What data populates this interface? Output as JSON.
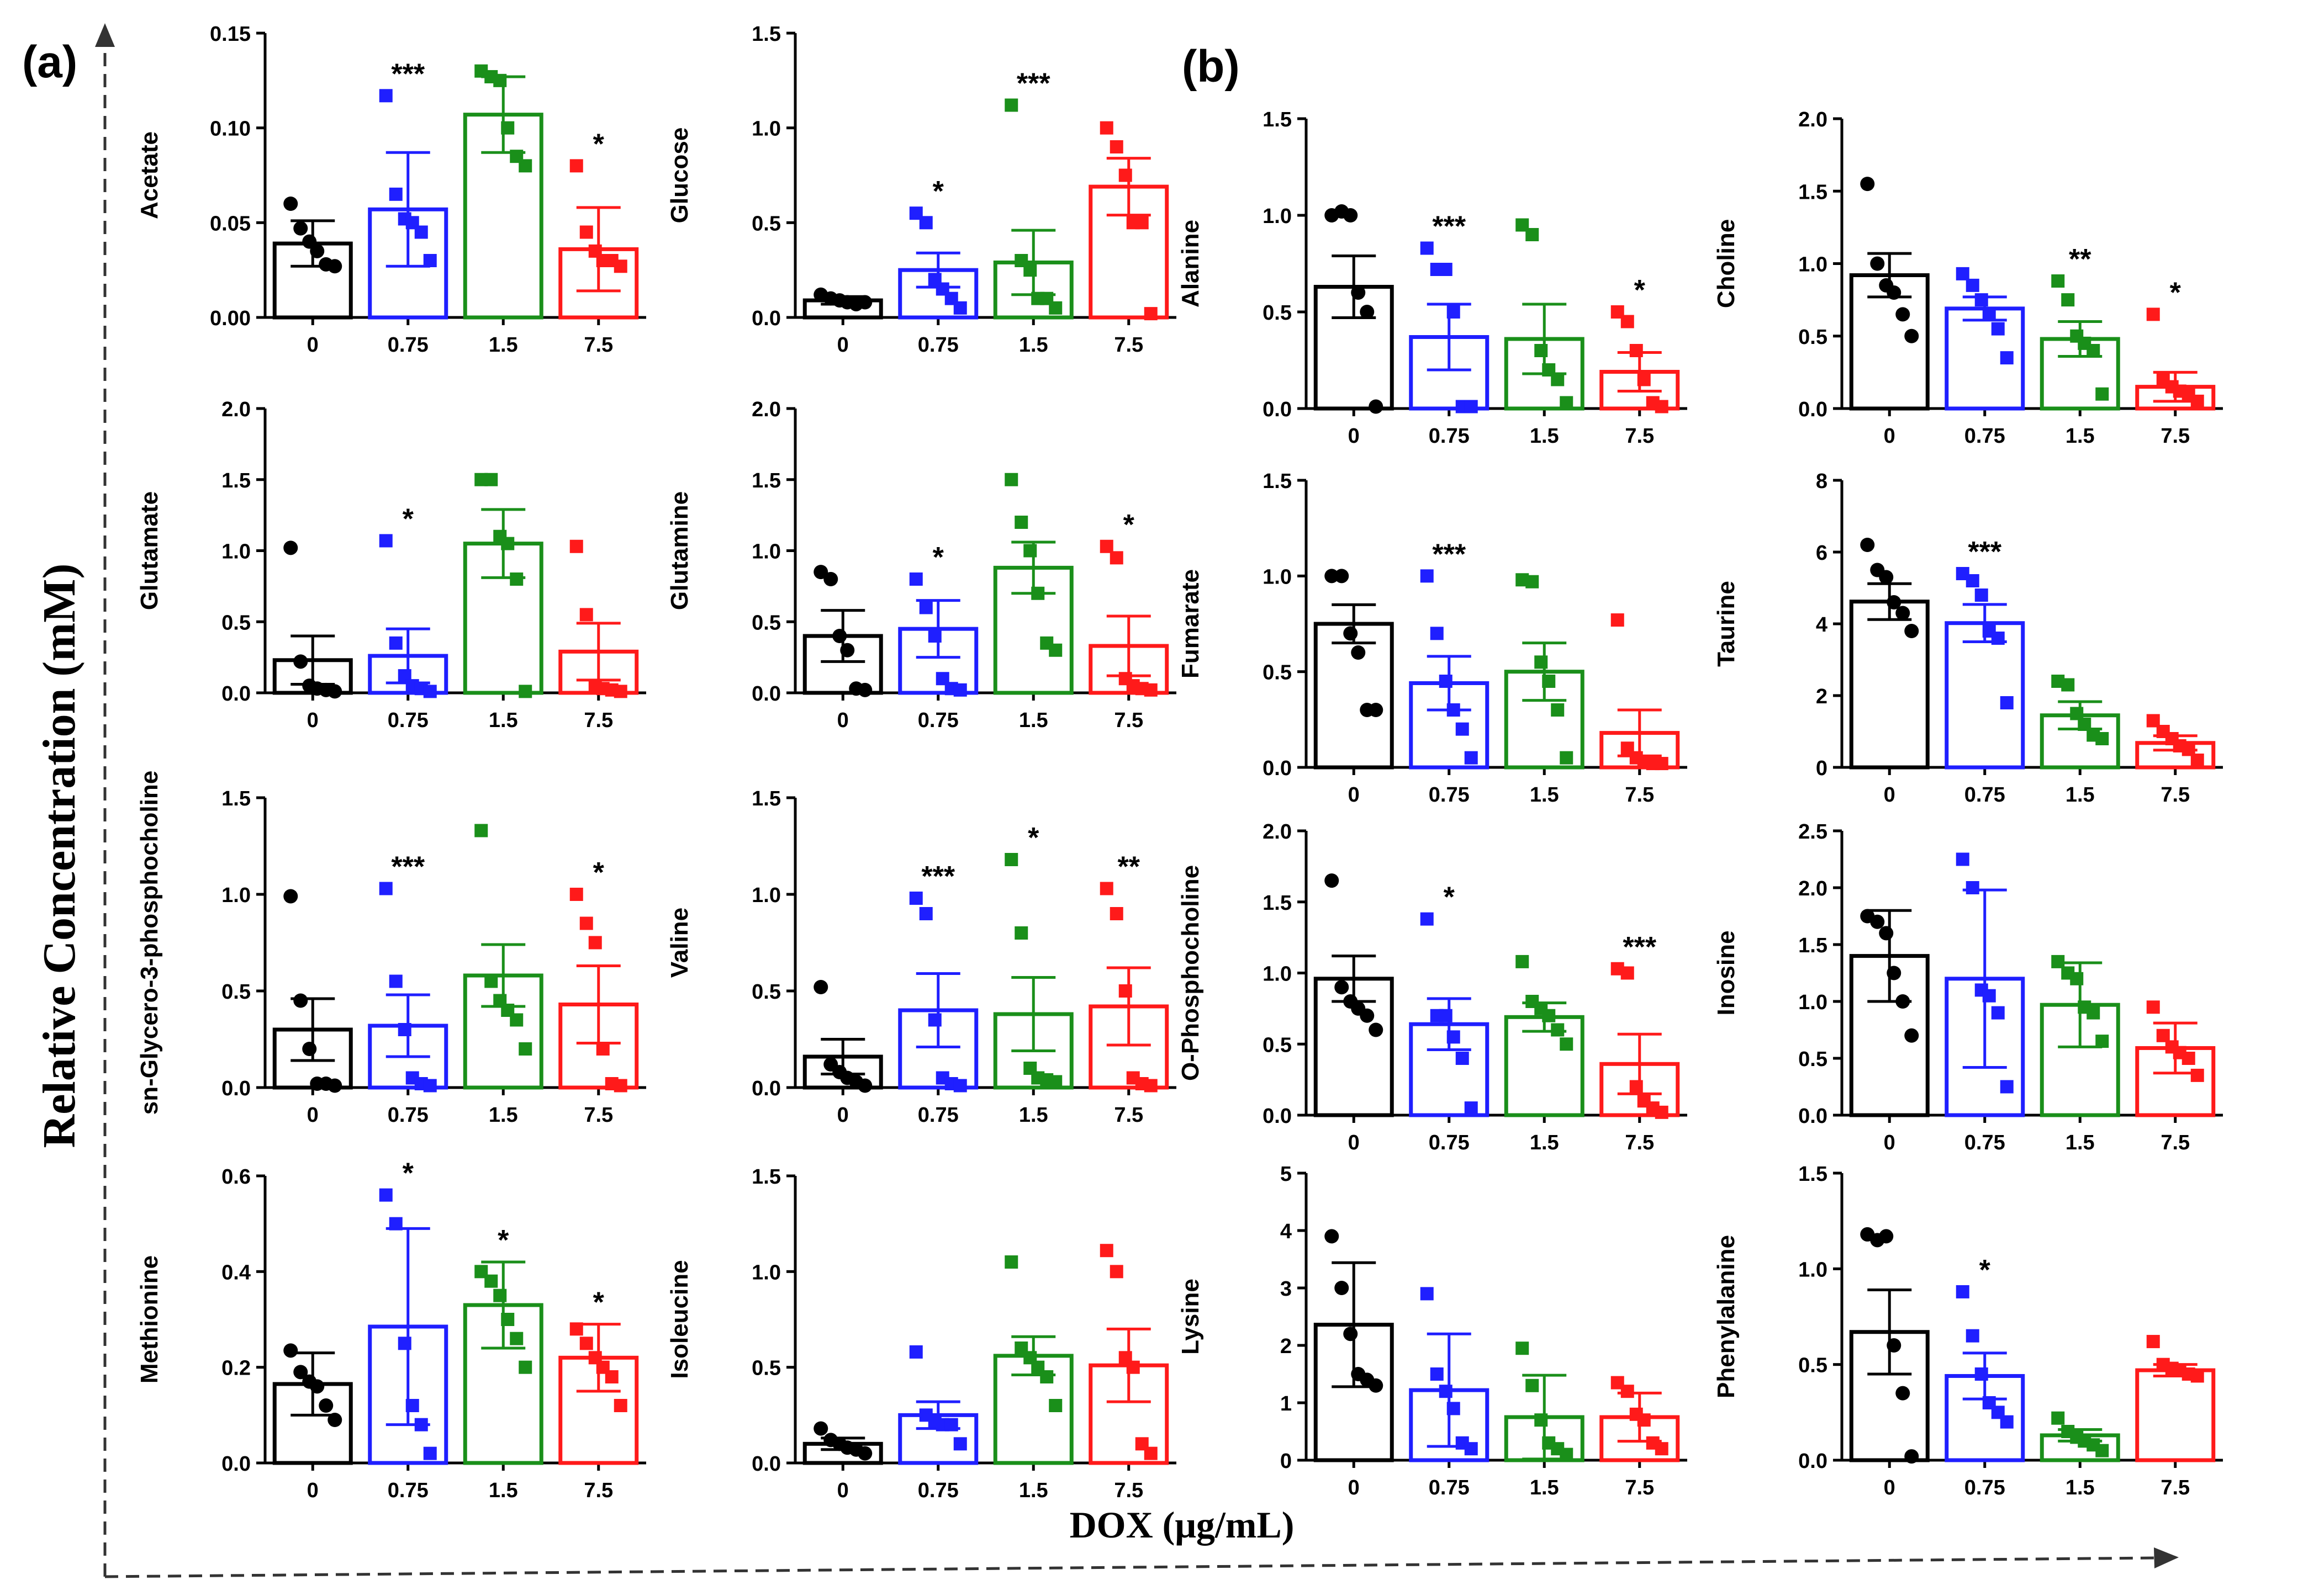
{
  "figure": {
    "panel_a_label": "(a)",
    "panel_b_label": "(b)",
    "y_axis_title": "Relative Concentration (mM)",
    "x_axis_title": "DOX (μg/mL)"
  },
  "colors": [
    "#000000",
    "#1f1fff",
    "#1a8f1a",
    "#ff1a1a"
  ],
  "chart_data": [
    {
      "type": "bar",
      "panel": "a",
      "ylabel": "Acetate",
      "categories": [
        "0",
        "0.75",
        "1.5",
        "7.5"
      ],
      "ylim": [
        0,
        0.15
      ],
      "yticks": [
        "0.00",
        "0.05",
        "0.10",
        "0.15"
      ],
      "ytick_values": [
        0,
        0.05,
        0.1,
        0.15
      ],
      "means": [
        0.039,
        0.057,
        0.107,
        0.036
      ],
      "errors": [
        0.012,
        0.03,
        0.02,
        0.022
      ],
      "sig": [
        "",
        "***",
        "",
        "*"
      ],
      "points": [
        [
          0.06,
          0.047,
          0.04,
          0.035,
          0.028,
          0.027
        ],
        [
          0.117,
          0.065,
          0.052,
          0.05,
          0.045,
          0.03
        ],
        [
          0.13,
          0.127,
          0.125,
          0.1,
          0.085,
          0.08
        ],
        [
          0.08,
          0.045,
          0.035,
          0.03,
          0.03,
          0.027
        ]
      ]
    },
    {
      "type": "bar",
      "panel": "a",
      "ylabel": "Glucose",
      "categories": [
        "0",
        "0.75",
        "1.5",
        "7.5"
      ],
      "ylim": [
        0,
        1.5
      ],
      "yticks": [
        "0.0",
        "0.5",
        "1.0",
        "1.5"
      ],
      "ytick_values": [
        0,
        0.5,
        1.0,
        1.5
      ],
      "means": [
        0.09,
        0.25,
        0.29,
        0.69
      ],
      "errors": [
        0.02,
        0.09,
        0.17,
        0.15
      ],
      "sig": [
        "",
        "*",
        "***",
        ""
      ],
      "points": [
        [
          0.12,
          0.1,
          0.09,
          0.08,
          0.07,
          0.08
        ],
        [
          0.55,
          0.5,
          0.2,
          0.15,
          0.1,
          0.05
        ],
        [
          1.12,
          0.3,
          0.25,
          0.1,
          0.1,
          0.05
        ],
        [
          1.0,
          0.9,
          0.75,
          0.5,
          0.5,
          0.02
        ]
      ]
    },
    {
      "type": "bar",
      "panel": "a",
      "ylabel": "Glutamate",
      "categories": [
        "0",
        "0.75",
        "1.5",
        "7.5"
      ],
      "ylim": [
        0,
        2.0
      ],
      "yticks": [
        "0.0",
        "0.5",
        "1.0",
        "1.5",
        "2.0"
      ],
      "ytick_values": [
        0,
        0.5,
        1.0,
        1.5,
        2.0
      ],
      "means": [
        0.23,
        0.26,
        1.05,
        0.29
      ],
      "errors": [
        0.17,
        0.19,
        0.24,
        0.2
      ],
      "sig": [
        "",
        "*",
        "",
        ""
      ],
      "points": [
        [
          1.02,
          0.22,
          0.05,
          0.03,
          0.02,
          0.01
        ],
        [
          1.07,
          0.35,
          0.12,
          0.05,
          0.03,
          0.01
        ],
        [
          1.5,
          1.5,
          1.1,
          1.05,
          0.8,
          0.01
        ],
        [
          1.03,
          0.55,
          0.05,
          0.03,
          0.02,
          0.01
        ]
      ]
    },
    {
      "type": "bar",
      "panel": "a",
      "ylabel": "Glutamine",
      "categories": [
        "0",
        "0.75",
        "1.5",
        "7.5"
      ],
      "ylim": [
        0,
        2.0
      ],
      "yticks": [
        "0.0",
        "0.5",
        "1.0",
        "1.5",
        "2.0"
      ],
      "ytick_values": [
        0,
        0.5,
        1.0,
        1.5,
        2.0
      ],
      "means": [
        0.4,
        0.45,
        0.88,
        0.33
      ],
      "errors": [
        0.18,
        0.2,
        0.18,
        0.21
      ],
      "sig": [
        "",
        "*",
        "",
        "*"
      ],
      "points": [
        [
          0.85,
          0.8,
          0.4,
          0.3,
          0.03,
          0.02
        ],
        [
          0.8,
          0.6,
          0.4,
          0.1,
          0.03,
          0.02
        ],
        [
          1.5,
          1.2,
          1.0,
          0.7,
          0.35,
          0.3
        ],
        [
          1.03,
          0.95,
          0.1,
          0.05,
          0.03,
          0.02
        ]
      ]
    },
    {
      "type": "bar",
      "panel": "a",
      "ylabel": "sn-Glycero-3-phosphocholine",
      "categories": [
        "0",
        "0.75",
        "1.5",
        "7.5"
      ],
      "ylim": [
        0,
        1.5
      ],
      "yticks": [
        "0.0",
        "0.5",
        "1.0",
        "1.5"
      ],
      "ytick_values": [
        0,
        0.5,
        1.0,
        1.5
      ],
      "means": [
        0.3,
        0.32,
        0.58,
        0.43
      ],
      "errors": [
        0.16,
        0.16,
        0.16,
        0.2
      ],
      "sig": [
        "",
        "***",
        "",
        "*"
      ],
      "points": [
        [
          0.99,
          0.45,
          0.2,
          0.02,
          0.02,
          0.01
        ],
        [
          1.03,
          0.55,
          0.3,
          0.05,
          0.02,
          0.01
        ],
        [
          1.33,
          0.55,
          0.45,
          0.4,
          0.35,
          0.2
        ],
        [
          1.0,
          0.85,
          0.75,
          0.2,
          0.02,
          0.01
        ]
      ]
    },
    {
      "type": "bar",
      "panel": "a",
      "ylabel": "Valine",
      "categories": [
        "0",
        "0.75",
        "1.5",
        "7.5"
      ],
      "ylim": [
        0,
        1.5
      ],
      "yticks": [
        "0.0",
        "0.5",
        "1.0",
        "1.5"
      ],
      "ytick_values": [
        0,
        0.5,
        1.0,
        1.5
      ],
      "means": [
        0.16,
        0.4,
        0.38,
        0.42
      ],
      "errors": [
        0.09,
        0.19,
        0.19,
        0.2
      ],
      "sig": [
        "",
        "***",
        "*",
        "**"
      ],
      "points": [
        [
          0.52,
          0.12,
          0.08,
          0.05,
          0.03,
          0.01
        ],
        [
          0.98,
          0.9,
          0.35,
          0.05,
          0.02,
          0.01
        ],
        [
          1.18,
          0.8,
          0.1,
          0.05,
          0.04,
          0.03
        ],
        [
          1.03,
          0.9,
          0.5,
          0.05,
          0.02,
          0.01
        ]
      ]
    },
    {
      "type": "bar",
      "panel": "a",
      "ylabel": "Methionine",
      "categories": [
        "0",
        "0.75",
        "1.5",
        "7.5"
      ],
      "ylim": [
        0,
        0.6
      ],
      "yticks": [
        "0.0",
        "0.2",
        "0.4",
        "0.6"
      ],
      "ytick_values": [
        0,
        0.2,
        0.4,
        0.6
      ],
      "means": [
        0.165,
        0.285,
        0.33,
        0.22
      ],
      "errors": [
        0.065,
        0.205,
        0.09,
        0.07
      ],
      "sig": [
        "",
        "*",
        "*",
        "*"
      ],
      "points": [
        [
          0.235,
          0.19,
          0.17,
          0.16,
          0.12,
          0.09
        ],
        [
          0.56,
          0.5,
          0.25,
          0.12,
          0.08,
          0.02
        ],
        [
          0.4,
          0.38,
          0.35,
          0.3,
          0.26,
          0.2
        ],
        [
          0.28,
          0.25,
          0.22,
          0.2,
          0.18,
          0.12
        ]
      ]
    },
    {
      "type": "bar",
      "panel": "a",
      "ylabel": "Isoleucine",
      "categories": [
        "0",
        "0.75",
        "1.5",
        "7.5"
      ],
      "ylim": [
        0,
        1.5
      ],
      "yticks": [
        "0.0",
        "0.5",
        "1.0",
        "1.5"
      ],
      "ytick_values": [
        0,
        0.5,
        1.0,
        1.5
      ],
      "means": [
        0.1,
        0.25,
        0.56,
        0.51
      ],
      "errors": [
        0.03,
        0.07,
        0.1,
        0.19
      ],
      "sig": [
        "",
        "",
        "",
        ""
      ],
      "points": [
        [
          0.18,
          0.12,
          0.1,
          0.08,
          0.07,
          0.05
        ],
        [
          0.58,
          0.25,
          0.22,
          0.2,
          0.2,
          0.1
        ],
        [
          1.05,
          0.6,
          0.55,
          0.5,
          0.45,
          0.3
        ],
        [
          1.11,
          1.0,
          0.55,
          0.5,
          0.1,
          0.05
        ]
      ]
    },
    {
      "type": "bar",
      "panel": "b",
      "ylabel": "Alanine",
      "categories": [
        "0",
        "0.75",
        "1.5",
        "7.5"
      ],
      "ylim": [
        0,
        1.5
      ],
      "yticks": [
        "0.0",
        "0.5",
        "1.0",
        "1.5"
      ],
      "ytick_values": [
        0,
        0.5,
        1.0,
        1.5
      ],
      "means": [
        0.63,
        0.37,
        0.36,
        0.19
      ],
      "errors": [
        0.16,
        0.17,
        0.18,
        0.1
      ],
      "sig": [
        "",
        "***",
        "",
        "*"
      ],
      "points": [
        [
          1.0,
          1.02,
          1.0,
          0.6,
          0.5,
          0.01
        ],
        [
          0.83,
          0.72,
          0.72,
          0.5,
          0.01,
          0.01
        ],
        [
          0.95,
          0.9,
          0.3,
          0.2,
          0.15,
          0.03
        ],
        [
          0.5,
          0.45,
          0.3,
          0.15,
          0.03,
          0.01
        ]
      ]
    },
    {
      "type": "bar",
      "panel": "b",
      "ylabel": "Choline",
      "categories": [
        "0",
        "0.75",
        "1.5",
        "7.5"
      ],
      "ylim": [
        0,
        2.0
      ],
      "yticks": [
        "0.0",
        "0.5",
        "1.0",
        "1.5",
        "2.0"
      ],
      "ytick_values": [
        0,
        0.5,
        1.0,
        1.5,
        2.0
      ],
      "means": [
        0.92,
        0.69,
        0.48,
        0.15
      ],
      "errors": [
        0.15,
        0.08,
        0.12,
        0.1
      ],
      "sig": [
        "",
        "",
        "**",
        "*"
      ],
      "points": [
        [
          1.55,
          1.0,
          0.85,
          0.8,
          0.65,
          0.5
        ],
        [
          0.93,
          0.85,
          0.75,
          0.65,
          0.55,
          0.35
        ],
        [
          0.88,
          0.75,
          0.5,
          0.45,
          0.4,
          0.1
        ],
        [
          0.65,
          0.2,
          0.15,
          0.12,
          0.1,
          0.05
        ]
      ]
    },
    {
      "type": "bar",
      "panel": "b",
      "ylabel": "Fumarate",
      "categories": [
        "0",
        "0.75",
        "1.5",
        "7.5"
      ],
      "ylim": [
        0,
        1.5
      ],
      "yticks": [
        "0.0",
        "0.5",
        "1.0",
        "1.5"
      ],
      "ytick_values": [
        0,
        0.5,
        1.0,
        1.5
      ],
      "means": [
        0.75,
        0.44,
        0.5,
        0.18
      ],
      "errors": [
        0.1,
        0.14,
        0.15,
        0.12
      ],
      "sig": [
        "",
        "***",
        "",
        ""
      ],
      "points": [
        [
          1.0,
          1.0,
          0.7,
          0.6,
          0.3,
          0.3
        ],
        [
          1.0,
          0.7,
          0.45,
          0.3,
          0.2,
          0.05
        ],
        [
          0.98,
          0.97,
          0.55,
          0.45,
          0.3,
          0.05
        ],
        [
          0.77,
          0.1,
          0.05,
          0.03,
          0.02,
          0.02
        ]
      ]
    },
    {
      "type": "bar",
      "panel": "b",
      "ylabel": "Taurine",
      "categories": [
        "0",
        "0.75",
        "1.5",
        "7.5"
      ],
      "ylim": [
        0,
        8
      ],
      "yticks": [
        "0",
        "2",
        "4",
        "6",
        "8"
      ],
      "ytick_values": [
        0,
        2,
        4,
        6,
        8
      ],
      "means": [
        4.62,
        4.02,
        1.45,
        0.68
      ],
      "errors": [
        0.5,
        0.52,
        0.38,
        0.2
      ],
      "sig": [
        "",
        "***",
        "",
        ""
      ],
      "points": [
        [
          6.2,
          5.5,
          5.3,
          4.6,
          4.3,
          3.8
        ],
        [
          5.4,
          5.2,
          4.8,
          3.8,
          3.6,
          1.8
        ],
        [
          2.4,
          2.3,
          1.5,
          1.2,
          0.9,
          0.8
        ],
        [
          1.3,
          1.0,
          0.8,
          0.6,
          0.5,
          0.2
        ]
      ]
    },
    {
      "type": "bar",
      "panel": "b",
      "ylabel": "O-Phosphocholine",
      "categories": [
        "0",
        "0.75",
        "1.5",
        "7.5"
      ],
      "ylim": [
        0,
        2.0
      ],
      "yticks": [
        "0.0",
        "0.5",
        "1.0",
        "1.5",
        "2.0"
      ],
      "ytick_values": [
        0,
        0.5,
        1.0,
        1.5,
        2.0
      ],
      "means": [
        0.96,
        0.64,
        0.69,
        0.36
      ],
      "errors": [
        0.16,
        0.18,
        0.1,
        0.21
      ],
      "sig": [
        "",
        "*",
        "",
        "***"
      ],
      "points": [
        [
          1.65,
          0.9,
          0.8,
          0.75,
          0.7,
          0.6
        ],
        [
          1.38,
          0.7,
          0.7,
          0.55,
          0.4,
          0.05
        ],
        [
          1.08,
          0.8,
          0.75,
          0.7,
          0.6,
          0.5
        ],
        [
          1.03,
          1.0,
          0.2,
          0.1,
          0.05,
          0.02
        ]
      ]
    },
    {
      "type": "bar",
      "panel": "b",
      "ylabel": "Inosine",
      "categories": [
        "0",
        "0.75",
        "1.5",
        "7.5"
      ],
      "ylim": [
        0,
        2.5
      ],
      "yticks": [
        "0.0",
        "0.5",
        "1.0",
        "1.5",
        "2.0",
        "2.5"
      ],
      "ytick_values": [
        0,
        0.5,
        1.0,
        1.5,
        2.0,
        2.5
      ],
      "means": [
        1.4,
        1.2,
        0.97,
        0.59
      ],
      "errors": [
        0.4,
        0.78,
        0.37,
        0.22
      ],
      "sig": [
        "",
        "",
        "",
        ""
      ],
      "points": [
        [
          1.75,
          1.7,
          1.6,
          1.25,
          1.0,
          0.7
        ],
        [
          2.25,
          2.0,
          1.1,
          1.05,
          0.9,
          0.25
        ],
        [
          1.35,
          1.25,
          1.2,
          0.95,
          0.9,
          0.65
        ],
        [
          0.95,
          0.7,
          0.6,
          0.55,
          0.5,
          0.35
        ]
      ]
    },
    {
      "type": "bar",
      "panel": "b",
      "ylabel": "Lysine",
      "categories": [
        "0",
        "0.75",
        "1.5",
        "7.5"
      ],
      "ylim": [
        0,
        5
      ],
      "yticks": [
        "0",
        "1",
        "2",
        "3",
        "4",
        "5"
      ],
      "ytick_values": [
        0,
        1,
        2,
        3,
        4,
        5
      ],
      "means": [
        2.36,
        1.22,
        0.75,
        0.75
      ],
      "errors": [
        1.08,
        0.98,
        0.73,
        0.42
      ],
      "sig": [
        "",
        "",
        "",
        ""
      ],
      "points": [
        [
          3.9,
          3.0,
          2.2,
          1.5,
          1.4,
          1.3
        ],
        [
          2.9,
          1.5,
          1.2,
          0.9,
          0.3,
          0.2
        ],
        [
          1.95,
          1.3,
          0.7,
          0.3,
          0.2,
          0.1
        ],
        [
          1.35,
          1.2,
          0.8,
          0.7,
          0.3,
          0.2
        ]
      ]
    },
    {
      "type": "bar",
      "panel": "b",
      "ylabel": "Phenylalanine",
      "categories": [
        "0",
        "0.75",
        "1.5",
        "7.5"
      ],
      "ylim": [
        0,
        1.5
      ],
      "yticks": [
        "0.0",
        "0.5",
        "1.0",
        "1.5"
      ],
      "ytick_values": [
        0,
        0.5,
        1.0,
        1.5
      ],
      "means": [
        0.67,
        0.44,
        0.13,
        0.47
      ],
      "errors": [
        0.22,
        0.12,
        0.03,
        0.03
      ],
      "sig": [
        "",
        "*",
        "",
        ""
      ],
      "points": [
        [
          1.18,
          1.15,
          1.17,
          0.6,
          0.35,
          0.02
        ],
        [
          0.88,
          0.65,
          0.45,
          0.3,
          0.25,
          0.2
        ],
        [
          0.22,
          0.15,
          0.12,
          0.1,
          0.08,
          0.05
        ],
        [
          0.62,
          0.5,
          0.48,
          0.47,
          0.45,
          0.44
        ]
      ]
    }
  ]
}
